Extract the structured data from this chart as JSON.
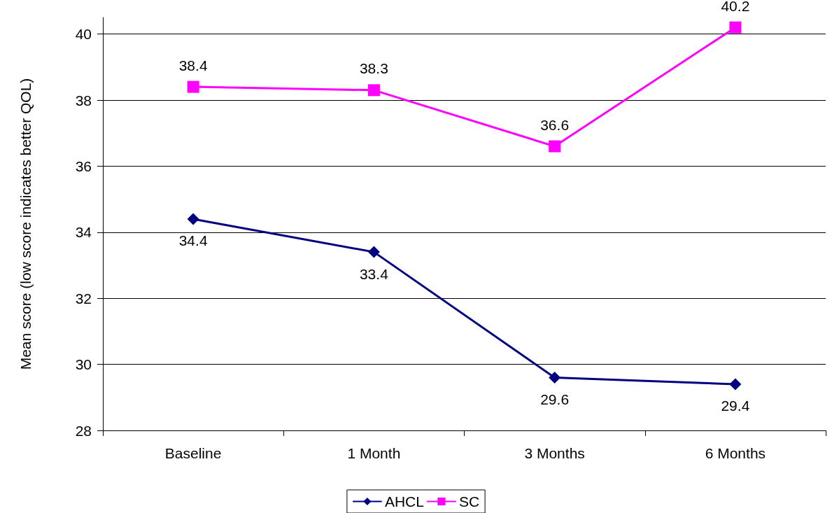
{
  "chart_data": {
    "type": "line",
    "ylabel": "Mean score (low score indicates better QOL)",
    "categories": [
      "Baseline",
      "1 Month",
      "3 Months",
      "6 Months"
    ],
    "series": [
      {
        "name": "AHCL",
        "color": "#000080",
        "marker": "diamond",
        "values": [
          34.4,
          33.4,
          29.6,
          29.4
        ]
      },
      {
        "name": "SC",
        "color": "#ff00ff",
        "marker": "square",
        "values": [
          38.4,
          38.3,
          36.6,
          40.2
        ]
      }
    ],
    "ylim": [
      28,
      40.5
    ],
    "yticks": [
      28,
      30,
      32,
      34,
      36,
      38,
      40
    ],
    "grid": "y",
    "legend": "bottom",
    "data_labels": true
  }
}
